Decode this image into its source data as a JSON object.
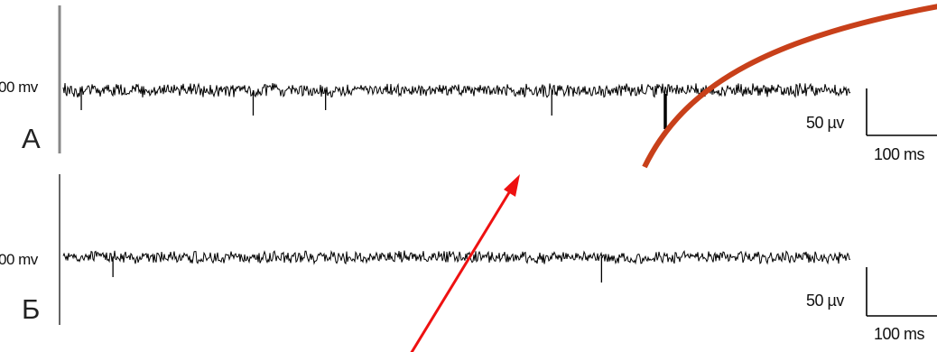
{
  "panels": [
    {
      "letter": "А",
      "baseline_label": "00 mv",
      "scale_amplitude": "50 µv",
      "scale_time": "100 ms",
      "spikes_ms": [
        20,
        210,
        290,
        540,
        665
      ]
    },
    {
      "letter": "Б",
      "baseline_label": "00 mv",
      "scale_amplitude": "50 µv",
      "scale_time": "100 ms",
      "spikes_ms": [
        55,
        595
      ]
    }
  ],
  "colors": {
    "trace": "#000000",
    "axis": "#555555",
    "curved_arrow": "#c8401a",
    "straight_arrow": "#ee1111"
  }
}
